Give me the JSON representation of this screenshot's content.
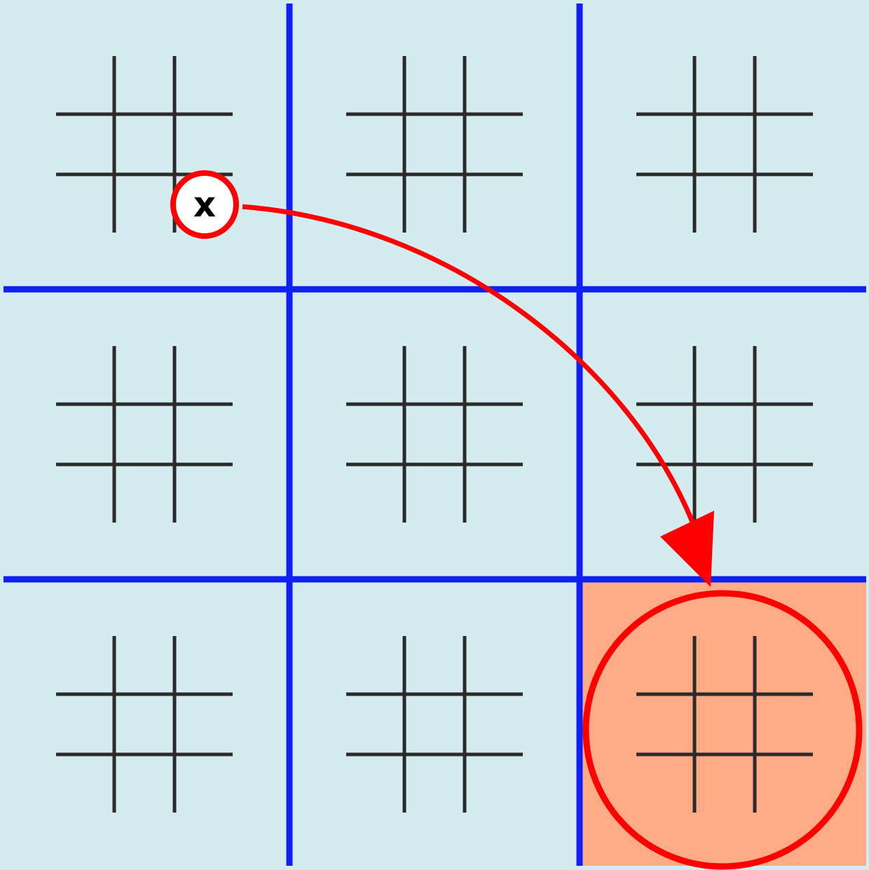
{
  "board": {
    "background_color": "#d4ebef",
    "highlight_color": "#ffab85",
    "outer_grid_color": "#1020f5",
    "inner_grid_color": "#2b2b2b",
    "annotation_color": "#ff0000",
    "rows": 3,
    "cols": 3,
    "highlighted_board": {
      "row": 2,
      "col": 2
    },
    "last_move": {
      "board_row": 0,
      "board_col": 0,
      "cell_row": 2,
      "cell_col": 2,
      "mark": "x"
    }
  },
  "annotations": {
    "arrow": {
      "from": "last-move",
      "to": "highlighted-board",
      "icon": "curved-arrow-icon"
    },
    "target_circle_icon": "circle-outline-icon"
  }
}
